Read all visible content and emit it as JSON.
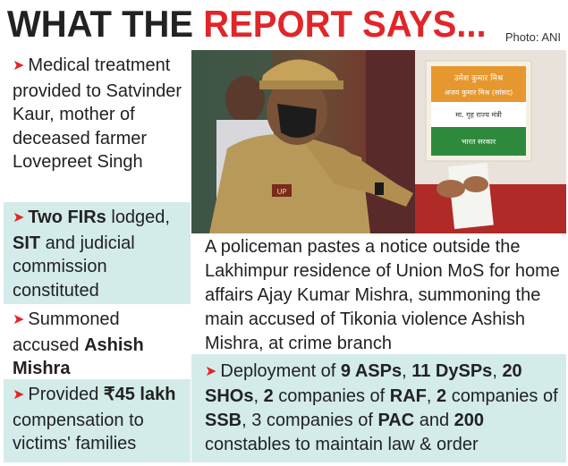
{
  "header": {
    "title_dark": "WHAT THE ",
    "title_red": "REPORT SAYS...",
    "photo_credit": "Photo: ANI"
  },
  "points": [
    {
      "text": "Medical treatment provided to Satvinder Kaur, mother of deceased farmer Lovepreet Singh"
    },
    {
      "bold1": "Two FIRs",
      "text1": " lodged, ",
      "bold2": "SIT",
      "text2": " and judicial commission constituted"
    },
    {
      "text": "Summoned accused ",
      "bold": "Ashish Mishra"
    },
    {
      "text": "Provided ",
      "bold": "₹45 lakh",
      "text2": " compensation to victims' families"
    }
  ],
  "photo": {
    "sign_line1": "उमेश कुमार मिश्र",
    "sign_line2": "अजय कुमार मिश्र (सांसद)",
    "sign_line3": "मा. गृह राज्य मंत्री",
    "sign_line4": "भारत सरकार",
    "badge_text": "UP"
  },
  "caption": "A policeman pastes a notice outside the Lakhimpur residence of Union MoS for home affairs Ajay Kumar Mishra, summoning the main accused of Tikonia violence Ashish Mishra, at crime branch",
  "deployment": {
    "t0": "Deployment of ",
    "b1": "9 ASPs",
    "t1": ", ",
    "b2": "11 DySPs",
    "t2": ", ",
    "b3": "20 SHOs",
    "t3": ", ",
    "b4": "2",
    "t4": " companies of ",
    "b5": "RAF",
    "t5": ", ",
    "b6": "2",
    "t6": " companies of ",
    "b7": "SSB",
    "t7": ", 3 companies of ",
    "b8": "PAC",
    "t8": " and ",
    "b9": "200",
    "t9": " constables to maintain law & order"
  },
  "colors": {
    "accent_red": "#e0262a",
    "box_teal": "#d3ebe9"
  }
}
